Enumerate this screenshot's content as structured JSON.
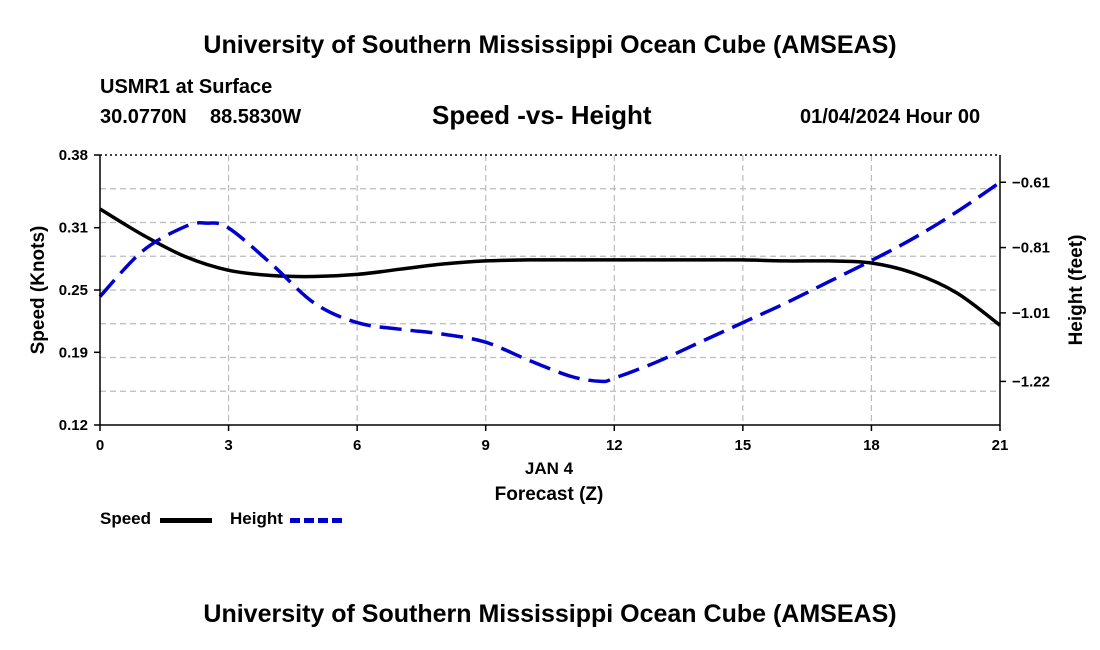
{
  "header": {
    "title": "University of Southern Mississippi Ocean Cube (AMSEAS)",
    "footer_title": "University of Southern Mississippi Ocean Cube (AMSEAS)",
    "station": "USMR1 at Surface",
    "latitude": "30.0770N",
    "longitude": "88.5830W",
    "subtitle": "Speed -vs- Height",
    "datetime": "01/04/2024 Hour 00"
  },
  "chart_data": {
    "type": "line",
    "title": "Speed -vs- Height",
    "xlabel": "Forecast (Z)",
    "x_sublabel": "JAN 4",
    "ylabel": "Speed (Knots)",
    "y2label": "Height (feet)",
    "xlim": [
      0,
      21
    ],
    "ylim": [
      0.12,
      0.38
    ],
    "y2lim": [
      -1.3535,
      -0.5265
    ],
    "x_ticks": [
      0,
      3,
      6,
      9,
      12,
      15,
      18,
      21
    ],
    "x_tick_labels": [
      "0",
      "3",
      "6",
      "9",
      "12",
      "15",
      "18",
      "21"
    ],
    "y_ticks": [
      0.12,
      0.19,
      0.25,
      0.31,
      0.38
    ],
    "y_tick_labels": [
      "0.12",
      "0.19",
      "0.25",
      "0.31",
      "0.38"
    ],
    "y_grid": [
      0.12,
      0.1525,
      0.185,
      0.2175,
      0.25,
      0.2825,
      0.315,
      0.3475,
      0.38
    ],
    "y2_ticks": [
      -1.22,
      -1.01,
      -0.81,
      -0.61
    ],
    "y2_tick_labels": [
      "−1.22",
      "−1.01",
      "−0.81",
      "−0.61"
    ],
    "grid": true,
    "series": [
      {
        "name": "Speed",
        "axis": "left",
        "color": "#000000",
        "dash": "solid",
        "x": [
          0,
          1,
          2,
          3,
          4,
          5,
          6,
          7,
          8,
          9,
          10,
          11,
          12,
          13,
          14,
          15,
          16,
          17,
          18,
          19,
          20,
          21
        ],
        "values": [
          0.328,
          0.303,
          0.282,
          0.269,
          0.264,
          0.263,
          0.265,
          0.27,
          0.275,
          0.278,
          0.279,
          0.279,
          0.279,
          0.279,
          0.279,
          0.279,
          0.278,
          0.278,
          0.276,
          0.266,
          0.247,
          0.216
        ]
      },
      {
        "name": "Height",
        "axis": "right",
        "color": "#0000cc",
        "dash": "dashed",
        "x": [
          0,
          1,
          2,
          2.5,
          3,
          4,
          5,
          6,
          7,
          8,
          9,
          10,
          11,
          11.7,
          12,
          13,
          14,
          15,
          16,
          17,
          18,
          19,
          20,
          21
        ],
        "values": [
          -0.96,
          -0.82,
          -0.745,
          -0.735,
          -0.75,
          -0.86,
          -0.98,
          -1.04,
          -1.06,
          -1.075,
          -1.1,
          -1.155,
          -1.205,
          -1.22,
          -1.21,
          -1.16,
          -1.1,
          -1.04,
          -0.98,
          -0.915,
          -0.85,
          -0.78,
          -0.7,
          -0.61
        ]
      }
    ]
  },
  "legend": {
    "speed_label": "Speed",
    "height_label": "Height"
  }
}
